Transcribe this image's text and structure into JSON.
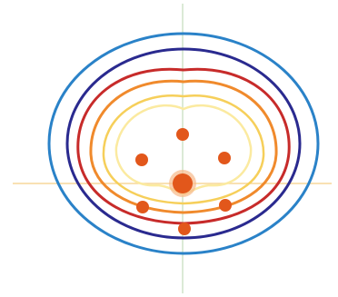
{
  "colors": {
    "background": "#ffffff",
    "axis_vertical": "#cfe3c9",
    "axis_horizontal": "#f7d79a",
    "contour_outer": "#2a82c8",
    "contour_2": "#2a2a8f",
    "contour_3": "#c72b2a",
    "contour_4": "#f08a2c",
    "contour_5": "#f6cf5a",
    "contour_inner": "#fbeaa0",
    "point_fill": "#e2571b",
    "center_fill": "#e2571b",
    "center_glow": "#f6b98a"
  },
  "diagram": {
    "kind": "concentric contour lines around a cluster of points",
    "contour_count": 6,
    "point_count": 7,
    "has_crosshair": true
  }
}
